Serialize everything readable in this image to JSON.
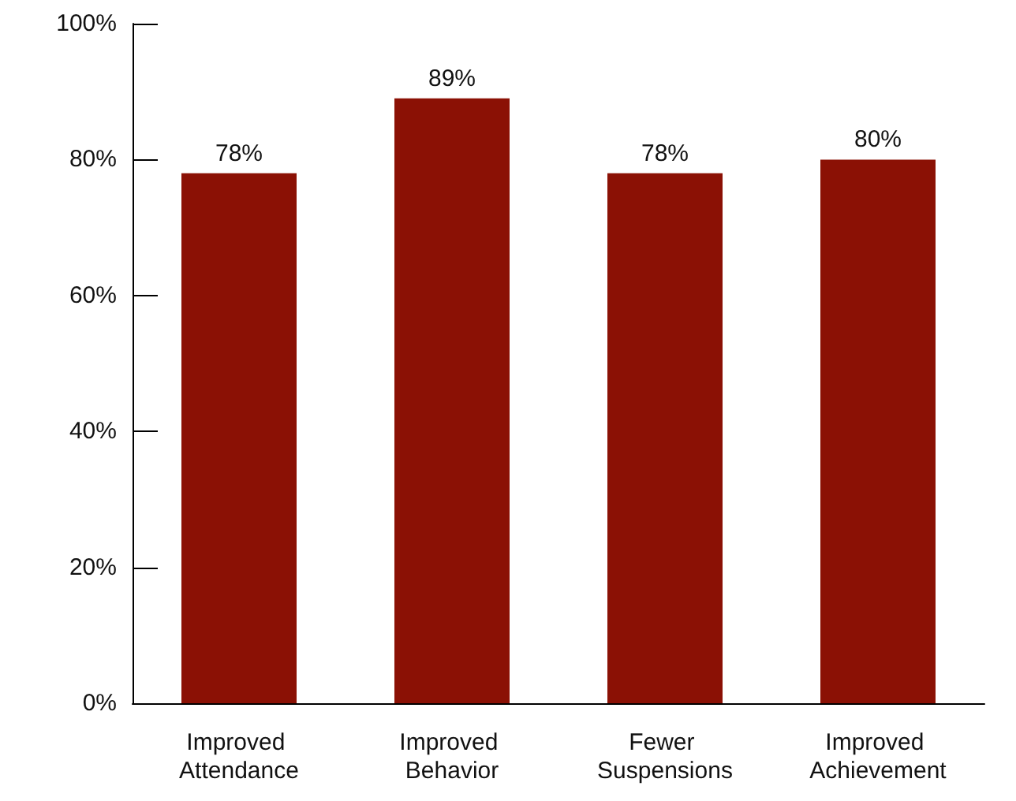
{
  "chart_data": {
    "type": "bar",
    "categories": [
      "Improved Attendance",
      "Improved Behavior",
      "Fewer Suspensions",
      "Improved Achievement"
    ],
    "values": [
      78,
      89,
      78,
      80
    ],
    "value_labels": [
      "78%",
      "89%",
      "78%",
      "80%"
    ],
    "color": "#8b1105",
    "ylim": [
      0,
      100
    ],
    "yticks": [
      {
        "value": 0,
        "label": "0%"
      },
      {
        "value": 20,
        "label": "20%"
      },
      {
        "value": 40,
        "label": "40%"
      },
      {
        "value": 60,
        "label": "60%"
      },
      {
        "value": 80,
        "label": "80%"
      },
      {
        "value": 100,
        "label": "100%"
      }
    ],
    "grid": false
  }
}
